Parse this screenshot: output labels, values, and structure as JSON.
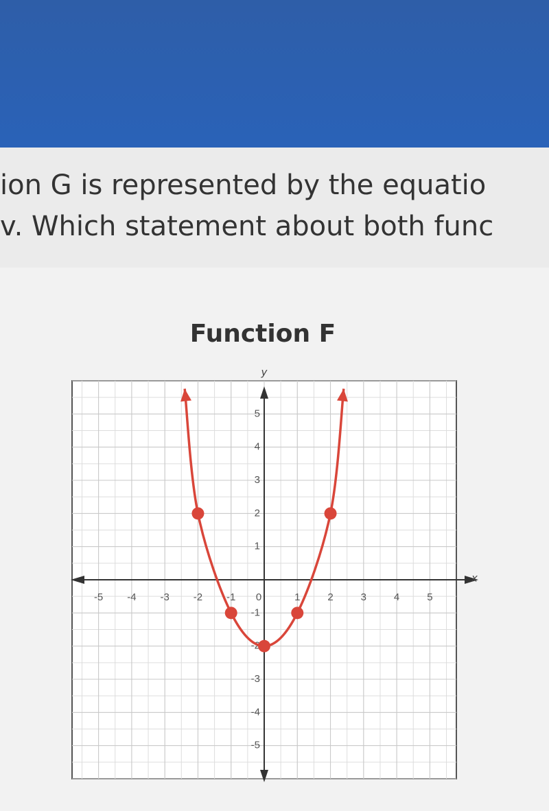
{
  "question": {
    "line1": "ion G is represented by the equatio",
    "line2": "v. Which statement about both func"
  },
  "chart_data": {
    "type": "line",
    "title": "Function F",
    "x_label": "x",
    "y_label": "y",
    "x": [
      -2.4,
      -2,
      -1,
      0,
      1,
      2,
      2.4
    ],
    "series": [
      {
        "color": "#d9463a",
        "values": [
          5.76,
          2,
          -1,
          -2,
          -1,
          2,
          5.76
        ]
      }
    ],
    "xlim": [
      -5.8,
      5.8
    ],
    "ylim": [
      -6,
      6
    ],
    "xticks": [
      -5,
      -4,
      -3,
      -2,
      -1,
      0,
      1,
      2,
      3,
      4,
      5
    ],
    "yticks": [
      -5,
      -4,
      -3,
      -2,
      -1,
      1,
      2,
      3,
      4,
      5
    ],
    "grid": true
  }
}
